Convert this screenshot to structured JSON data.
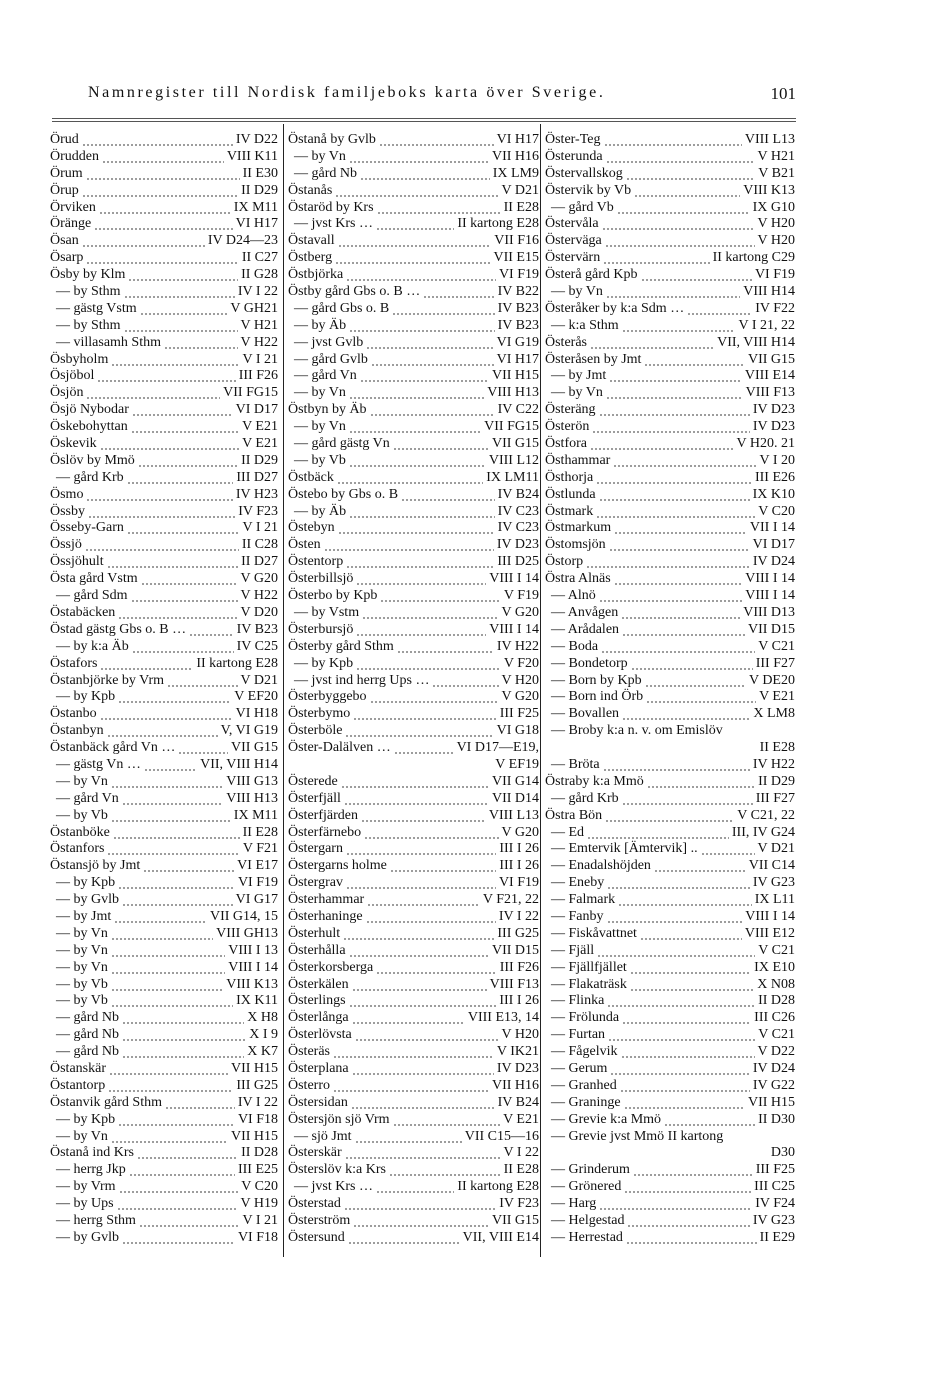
{
  "header": {
    "title": "Namnregister till Nordisk familjeboks karta över Sverige.",
    "page_number": "101"
  },
  "columns": [
    [
      {
        "n": "Örud",
        "r": "IV D22"
      },
      {
        "n": "Örudden",
        "r": "VIII K11"
      },
      {
        "n": "Örum",
        "r": "II E30"
      },
      {
        "n": "Örup",
        "r": "II D29"
      },
      {
        "n": "Örviken",
        "r": "IX M11"
      },
      {
        "n": "Öränge",
        "r": "VI H17"
      },
      {
        "n": "Ösan",
        "r": "IV D24—23"
      },
      {
        "n": "Ösarp",
        "r": "II C27"
      },
      {
        "n": "Ösby by Klm",
        "r": "II G28"
      },
      {
        "n": "— by Sthm",
        "r": "IV I 22"
      },
      {
        "n": "— gästg Vstm",
        "r": "V GH21"
      },
      {
        "n": "— by Sthm",
        "r": "V H21"
      },
      {
        "n": "— villasamh Sthm",
        "r": "V H22"
      },
      {
        "n": "Ösbyholm",
        "r": "V I 21"
      },
      {
        "n": "Ösjöbol",
        "r": "III F26"
      },
      {
        "n": "Ösjön",
        "r": "VII FG15"
      },
      {
        "n": "Ösjö Nybodar",
        "r": "VI D17"
      },
      {
        "n": "Öskebohyttan",
        "r": "V E21"
      },
      {
        "n": "Öskevik",
        "r": "V E21"
      },
      {
        "n": "Öslöv by Mmö",
        "r": "II D29"
      },
      {
        "n": "— gård Krb",
        "r": "III D27"
      },
      {
        "n": "Ösmo",
        "r": "IV H23"
      },
      {
        "n": "Össby",
        "r": "IV F23"
      },
      {
        "n": "Össeby-Garn",
        "r": "V I 21"
      },
      {
        "n": "Össjö",
        "r": "II C28"
      },
      {
        "n": "Össjöhult",
        "r": "II D27"
      },
      {
        "n": "Östa gård Vstm",
        "r": "V G20"
      },
      {
        "n": "— gård Sdm",
        "r": "V H22"
      },
      {
        "n": "Östabäcken",
        "r": "V D20"
      },
      {
        "n": "Östad gästg Gbs o. B …",
        "r": "IV B23"
      },
      {
        "n": "— by k:a Äb",
        "r": "IV C25"
      },
      {
        "n": "Östafors",
        "r": "II kartong E28"
      },
      {
        "n": "Östanbjörke by Vrm",
        "r": "V D21"
      },
      {
        "n": "— by Kpb",
        "r": "V EF20"
      },
      {
        "n": "Östanbo",
        "r": "VI H18"
      },
      {
        "n": "Östanbyn",
        "r": "V, VI G19"
      },
      {
        "n": "Östanbäck gård Vn …",
        "r": "VII G15"
      },
      {
        "n": "— gästg Vn …",
        "r": "VII, VIII H14"
      },
      {
        "n": "— by Vn",
        "r": "VIII G13"
      },
      {
        "n": "— gård Vn",
        "r": "VIII H13"
      },
      {
        "n": "— by Vb",
        "r": "IX M11"
      },
      {
        "n": "Östanböke",
        "r": "II E28"
      },
      {
        "n": "Östanfors",
        "r": "V F21"
      },
      {
        "n": "Östansjö by Jmt",
        "r": "VI E17"
      },
      {
        "n": "— by Kpb",
        "r": "VI F19"
      },
      {
        "n": "— by Gvlb",
        "r": "VI G17"
      },
      {
        "n": "— by Jmt",
        "r": "VII G14, 15"
      },
      {
        "n": "— by Vn",
        "r": "VIII GH13"
      },
      {
        "n": "— by Vn",
        "r": "VIII I 13"
      },
      {
        "n": "— by Vn",
        "r": "VIII I 14"
      },
      {
        "n": "— by Vb",
        "r": "VIII K13"
      },
      {
        "n": "— by Vb",
        "r": "IX K11"
      },
      {
        "n": "— gård Nb",
        "r": "X H8"
      },
      {
        "n": "— gård Nb",
        "r": "X I 9"
      },
      {
        "n": "— gård Nb",
        "r": "X K7"
      },
      {
        "n": "Östanskär",
        "r": "VII H15"
      },
      {
        "n": "Östantorp",
        "r": "III G25"
      },
      {
        "n": "Östanvik gård Sthm",
        "r": "IV I 22"
      },
      {
        "n": "— by Kpb",
        "r": "VI F18"
      },
      {
        "n": "— by Vn",
        "r": "VII H15"
      },
      {
        "n": "Östanå ind Krs",
        "r": "II D28"
      },
      {
        "n": "— herrg Jkp",
        "r": "III E25"
      },
      {
        "n": "— by Vrm",
        "r": "V C20"
      },
      {
        "n": "— by Ups",
        "r": "V H19"
      },
      {
        "n": "— herrg Sthm",
        "r": "V I 21"
      },
      {
        "n": "— by Gvlb",
        "r": "VI F18"
      }
    ],
    [
      {
        "n": "Östanå by Gvlb",
        "r": "VI H17"
      },
      {
        "n": "— by Vn",
        "r": "VII H16"
      },
      {
        "n": "— gård Nb",
        "r": "IX LM9"
      },
      {
        "n": "Östanås",
        "r": "V D21"
      },
      {
        "n": "Östaröd by Krs",
        "r": "II E28"
      },
      {
        "n": "— jvst Krs …",
        "r": "II kartong E28"
      },
      {
        "n": "Östavall",
        "r": "VII F16"
      },
      {
        "n": "Östberg",
        "r": "VII E15"
      },
      {
        "n": "Östbjörka",
        "r": "VI F19"
      },
      {
        "n": "Östby gård Gbs o. B …",
        "r": "IV B22"
      },
      {
        "n": "— gård Gbs o. B",
        "r": "IV B23"
      },
      {
        "n": "— by Äb",
        "r": "IV B23"
      },
      {
        "n": "— jvst Gvlb",
        "r": "VI G19"
      },
      {
        "n": "— gård Gvlb",
        "r": "VI H17"
      },
      {
        "n": "— gård Vn",
        "r": "VII H15"
      },
      {
        "n": "— by Vn",
        "r": "VIII H13"
      },
      {
        "n": "Östbyn by Äb",
        "r": "IV C22"
      },
      {
        "n": "— by Vn",
        "r": "VII FG15"
      },
      {
        "n": "— gård gästg Vn",
        "r": "VII G15"
      },
      {
        "n": "— by Vb",
        "r": "VIII L12"
      },
      {
        "n": "Östbäck",
        "r": "IX LM11"
      },
      {
        "n": "Östebo by Gbs o. B",
        "r": "IV B24"
      },
      {
        "n": "— by Äb",
        "r": "IV C23"
      },
      {
        "n": "Östebyn",
        "r": "IV C23"
      },
      {
        "n": "Östen",
        "r": "IV D23"
      },
      {
        "n": "Östentorp",
        "r": "III D25"
      },
      {
        "n": "Österbillsjö",
        "r": "VIII I 14"
      },
      {
        "n": "Österbo by Kpb",
        "r": "V F19"
      },
      {
        "n": "— by Vstm",
        "r": "V G20"
      },
      {
        "n": "Österbursjö",
        "r": "VIII I 14"
      },
      {
        "n": "Österby gård Sthm",
        "r": "IV H22"
      },
      {
        "n": "— by Kpb",
        "r": "V F20"
      },
      {
        "n": "— jvst ind herrg Ups …",
        "r": "V H20"
      },
      {
        "n": "Österbyggebo",
        "r": "V G20"
      },
      {
        "n": "Österbymo",
        "r": "III F25"
      },
      {
        "n": "Österböle",
        "r": "VI G18"
      },
      {
        "n": "Öster-Dalälven …",
        "r": "VI D17—E19,"
      },
      {
        "c": "V EF19"
      },
      {
        "n": "Österede",
        "r": "VII G14"
      },
      {
        "n": "Österfjäll",
        "r": "VII D14"
      },
      {
        "n": "Österfjärden",
        "r": "VIII L13"
      },
      {
        "n": "Österfärnebo",
        "r": "V G20"
      },
      {
        "n": "Östergarn",
        "r": "III I 26"
      },
      {
        "n": "Östergarns holme",
        "r": "III I 26"
      },
      {
        "n": "Östergrav",
        "r": "VI F19"
      },
      {
        "n": "Österhammar",
        "r": "V F21, 22"
      },
      {
        "n": "Österhaninge",
        "r": "IV I 22"
      },
      {
        "n": "Österhult",
        "r": "III G25"
      },
      {
        "n": "Österhålla",
        "r": "VII D15"
      },
      {
        "n": "Österkorsberga",
        "r": "III F26"
      },
      {
        "n": "Österkälen",
        "r": "VIII F13"
      },
      {
        "n": "Österlings",
        "r": "III I 26"
      },
      {
        "n": "Österlånga",
        "r": "VIII E13, 14"
      },
      {
        "n": "Österlövsta",
        "r": "V H20"
      },
      {
        "n": "Österäs",
        "r": "V IK21"
      },
      {
        "n": "Österplana",
        "r": "IV D23"
      },
      {
        "n": "Österro",
        "r": "VII H16"
      },
      {
        "n": "Östersidan",
        "r": "IV B24"
      },
      {
        "n": "Östersjön sjö Vrm",
        "r": "V E21"
      },
      {
        "n": "— sjö Jmt",
        "r": "VII C15—16"
      },
      {
        "n": "Österskär",
        "r": "V I 22"
      },
      {
        "n": "Österslöv k:a Krs",
        "r": "II E28"
      },
      {
        "n": "— jvst Krs …",
        "r": "II kartong E28"
      },
      {
        "n": "Österstad",
        "r": "IV F23"
      },
      {
        "n": "Österström",
        "r": "VII G15"
      },
      {
        "n": "Östersund",
        "r": "VII, VIII E14"
      }
    ],
    [
      {
        "n": "Öster-Teg",
        "r": "VIII L13"
      },
      {
        "n": "Österunda",
        "r": "V H21"
      },
      {
        "n": "Östervallskog",
        "r": "V B21"
      },
      {
        "n": "Östervik by Vb",
        "r": "VIII K13"
      },
      {
        "n": "— gård Vb",
        "r": "IX G10"
      },
      {
        "n": "Östervåla",
        "r": "V H20"
      },
      {
        "n": "Österväga",
        "r": "V H20"
      },
      {
        "n": "Östervärn",
        "r": "II kartong C29"
      },
      {
        "n": "Österå gård Kpb",
        "r": "VI F19"
      },
      {
        "n": "— by Vn",
        "r": "VIII H14"
      },
      {
        "n": "Österåker by k:a Sdm …",
        "r": "IV F22"
      },
      {
        "n": "— k:a Sthm",
        "r": "V I 21, 22"
      },
      {
        "n": "Österås",
        "r": "VII, VIII H14"
      },
      {
        "n": "Österåsen by Jmt",
        "r": "VII G15"
      },
      {
        "n": "— by Jmt",
        "r": "VIII E14"
      },
      {
        "n": "— by Vn",
        "r": "VIII F13"
      },
      {
        "n": "Österäng",
        "r": "IV D23"
      },
      {
        "n": "Österön",
        "r": "IV D23"
      },
      {
        "n": "Östfora",
        "r": "V H20. 21"
      },
      {
        "n": "Östhammar",
        "r": "V I 20"
      },
      {
        "n": "Östhorja",
        "r": "III E26"
      },
      {
        "n": "Östlunda",
        "r": "IX K10"
      },
      {
        "n": "Östmark",
        "r": "V C20"
      },
      {
        "n": "Östmarkum",
        "r": "VII I 14"
      },
      {
        "n": "Östomsjön",
        "r": "VI D17"
      },
      {
        "n": "Östorp",
        "r": "IV D24"
      },
      {
        "n": "Östra Alnäs",
        "r": "VIII I 14"
      },
      {
        "n": "— Alnö",
        "r": "VIII I 14"
      },
      {
        "n": "— Anvågen",
        "r": "VIII D13"
      },
      {
        "n": "— Arådalen",
        "r": "VII D15"
      },
      {
        "n": "— Boda",
        "r": "V C21"
      },
      {
        "n": "— Bondetorp",
        "r": "III F27"
      },
      {
        "n": "— Born by Kpb",
        "r": "V DE20"
      },
      {
        "n": "— Born ind Örb",
        "r": "V E21"
      },
      {
        "n": "— Bovallen",
        "r": "X LM8"
      },
      {
        "n": "— Broby k:a n. v. om Emislöv",
        "r": ""
      },
      {
        "c": "II E28"
      },
      {
        "n": "— Bröta",
        "r": "IV H22"
      },
      {
        "n": "Östraby k:a Mmö",
        "r": "II D29"
      },
      {
        "n": "— gård Krb",
        "r": "III F27"
      },
      {
        "n": "Östra Bön",
        "r": "V C21, 22"
      },
      {
        "n": "— Ed",
        "r": "III, IV G24"
      },
      {
        "n": "— Emtervik [Ämtervik] ..",
        "r": "V D21"
      },
      {
        "n": "— Enadalshöjden",
        "r": "VII C14"
      },
      {
        "n": "— Eneby",
        "r": "IV G23"
      },
      {
        "n": "— Falmark",
        "r": "IX L11"
      },
      {
        "n": "— Fanby",
        "r": "VIII I 14"
      },
      {
        "n": "— Fiskåvattnet",
        "r": "VIII E12"
      },
      {
        "n": "— Fjäll",
        "r": "V C21"
      },
      {
        "n": "— Fjällfjället",
        "r": "IX E10"
      },
      {
        "n": "— Flakaträsk",
        "r": "X N08"
      },
      {
        "n": "— Flinka",
        "r": "II D28"
      },
      {
        "n": "— Frölunda",
        "r": "III C26"
      },
      {
        "n": "— Furtan",
        "r": "V C21"
      },
      {
        "n": "— Fågelvik",
        "r": "V D22"
      },
      {
        "n": "— Gerum",
        "r": "IV D24"
      },
      {
        "n": "— Granhed",
        "r": "IV G22"
      },
      {
        "n": "— Graninge",
        "r": "VII H15"
      },
      {
        "n": "— Grevie k:a Mmö",
        "r": "II D30"
      },
      {
        "n": "— Grevie jvst Mmö II kartong",
        "r": ""
      },
      {
        "c": "D30"
      },
      {
        "n": "— Grinderum",
        "r": "III F25"
      },
      {
        "n": "— Grönered",
        "r": "III C25"
      },
      {
        "n": "— Harg",
        "r": "IV F24"
      },
      {
        "n": "— Helgestad",
        "r": "IV G23"
      },
      {
        "n": "— Herrestad",
        "r": "II E29"
      }
    ]
  ]
}
